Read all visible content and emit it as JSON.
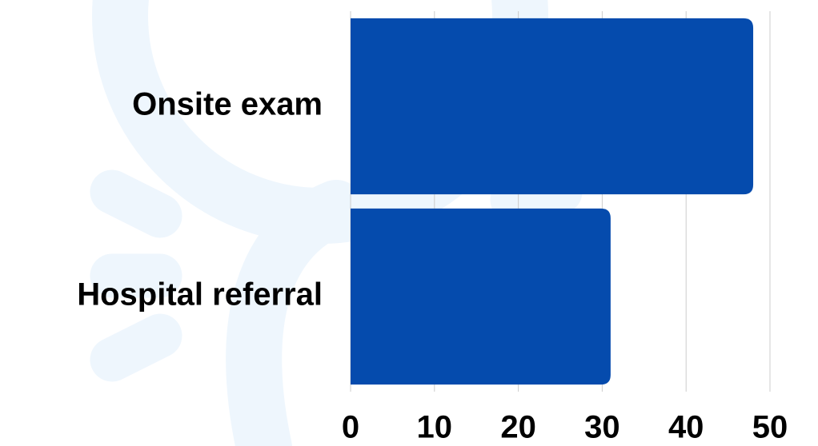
{
  "chart_data": {
    "type": "bar",
    "horizontal": true,
    "categories": [
      "Onsite exam",
      "Hospital referral"
    ],
    "values": [
      48,
      31
    ],
    "color": "#054bad",
    "xlim": [
      0,
      50
    ],
    "xticks": [
      0,
      10,
      20,
      30,
      40,
      50
    ],
    "grid": true
  }
}
